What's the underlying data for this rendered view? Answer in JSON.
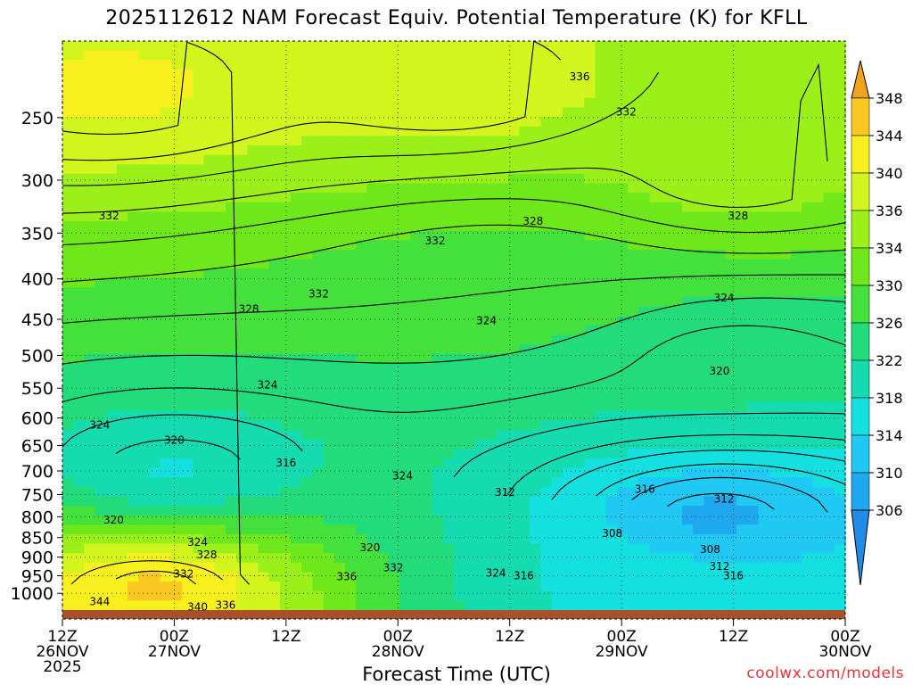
{
  "title": "2025112612 NAM Forecast Equiv. Potential Temperature (K) for KFLL",
  "xlabel": "Forecast Time (UTC)",
  "credit": "coolwx.com/models",
  "chart_data": {
    "type": "heatmap",
    "title": "2025112612 NAM Forecast Equiv. Potential Temperature (K) for KFLL",
    "xlabel": "Forecast Time (UTC)",
    "ylabel": "",
    "x_range_hours": [
      0,
      84
    ],
    "y_range_hpa": [
      1050,
      200
    ],
    "y_scale": "log",
    "grid": true,
    "x_ticks": [
      {
        "h": 0,
        "l1": "12Z",
        "l2": "26NOV",
        "l3": "2025"
      },
      {
        "h": 12,
        "l1": "00Z",
        "l2": "27NOV",
        "l3": ""
      },
      {
        "h": 24,
        "l1": "12Z",
        "l2": "",
        "l3": ""
      },
      {
        "h": 36,
        "l1": "00Z",
        "l2": "28NOV",
        "l3": ""
      },
      {
        "h": 48,
        "l1": "12Z",
        "l2": "",
        "l3": ""
      },
      {
        "h": 60,
        "l1": "00Z",
        "l2": "29NOV",
        "l3": ""
      },
      {
        "h": 72,
        "l1": "12Z",
        "l2": "",
        "l3": ""
      },
      {
        "h": 84,
        "l1": "00Z",
        "l2": "30NOV",
        "l3": ""
      }
    ],
    "y_ticks": [
      250,
      300,
      350,
      400,
      450,
      500,
      550,
      600,
      650,
      700,
      750,
      800,
      850,
      900,
      950,
      1000
    ],
    "colorbar": {
      "labels": [
        348,
        344,
        340,
        336,
        334,
        330,
        326,
        322,
        318,
        314,
        310,
        306
      ],
      "colors": [
        "#f3a21d",
        "#fac820",
        "#f8f01e",
        "#d2f51e",
        "#9cf01a",
        "#6ee81a",
        "#44e03c",
        "#22dc7c",
        "#14dcb0",
        "#14e0e0",
        "#20c8f4",
        "#1ea8f0",
        "#1e8ce8"
      ]
    },
    "field_samples": [
      {
        "h": 6,
        "p": 230,
        "theta_e": 340
      },
      {
        "h": 42,
        "p": 230,
        "theta_e": 338
      },
      {
        "h": 72,
        "p": 300,
        "theta_e": 333
      },
      {
        "h": 48,
        "p": 400,
        "theta_e": 326
      },
      {
        "h": 72,
        "p": 500,
        "theta_e": 321
      },
      {
        "h": 12,
        "p": 700,
        "theta_e": 316
      },
      {
        "h": 70,
        "p": 800,
        "theta_e": 308
      },
      {
        "h": 60,
        "p": 1000,
        "theta_e": 316
      },
      {
        "h": 10,
        "p": 980,
        "theta_e": 344
      }
    ],
    "contour_labels": [
      {
        "t": "336",
        "h": 55.5,
        "p": 222
      },
      {
        "t": "332",
        "h": 60.5,
        "p": 246
      },
      {
        "t": "332",
        "h": 5.0,
        "p": 333
      },
      {
        "t": "332",
        "h": 40.0,
        "p": 358
      },
      {
        "t": "328",
        "h": 50.5,
        "p": 338
      },
      {
        "t": "328",
        "h": 72.5,
        "p": 333
      },
      {
        "t": "332",
        "h": 27.5,
        "p": 418
      },
      {
        "t": "328",
        "h": 20.0,
        "p": 437
      },
      {
        "t": "324",
        "h": 71.0,
        "p": 423
      },
      {
        "t": "324",
        "h": 45.5,
        "p": 452
      },
      {
        "t": "320",
        "h": 70.5,
        "p": 523
      },
      {
        "t": "324",
        "h": 22.0,
        "p": 545
      },
      {
        "t": "324",
        "h": 4.0,
        "p": 612
      },
      {
        "t": "320",
        "h": 12.0,
        "p": 640
      },
      {
        "t": "316",
        "h": 24.0,
        "p": 684
      },
      {
        "t": "324",
        "h": 36.5,
        "p": 710
      },
      {
        "t": "312",
        "h": 47.5,
        "p": 745
      },
      {
        "t": "316",
        "h": 62.5,
        "p": 738
      },
      {
        "t": "312",
        "h": 71.0,
        "p": 760
      },
      {
        "t": "320",
        "h": 5.5,
        "p": 808
      },
      {
        "t": "308",
        "h": 59.0,
        "p": 840
      },
      {
        "t": "324",
        "h": 14.5,
        "p": 862
      },
      {
        "t": "328",
        "h": 15.5,
        "p": 894
      },
      {
        "t": "308",
        "h": 69.5,
        "p": 880
      },
      {
        "t": "320",
        "h": 33.0,
        "p": 875
      },
      {
        "t": "332",
        "h": 35.5,
        "p": 928
      },
      {
        "t": "332",
        "h": 13.0,
        "p": 945
      },
      {
        "t": "324",
        "h": 46.5,
        "p": 943
      },
      {
        "t": "316",
        "h": 49.5,
        "p": 950
      },
      {
        "t": "312",
        "h": 70.5,
        "p": 925
      },
      {
        "t": "316",
        "h": 72.0,
        "p": 950
      },
      {
        "t": "336",
        "h": 30.5,
        "p": 952
      },
      {
        "t": "344",
        "h": 4.0,
        "p": 1025
      },
      {
        "t": "340",
        "h": 14.5,
        "p": 1040
      },
      {
        "t": "336",
        "h": 17.5,
        "p": 1035
      }
    ]
  }
}
